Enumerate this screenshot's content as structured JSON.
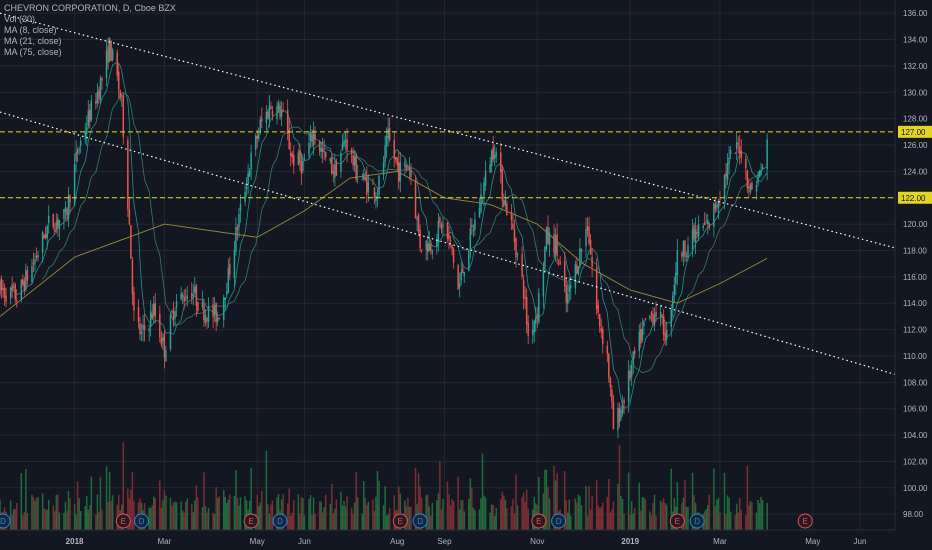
{
  "legend": {
    "symbol": "CHEVRON CORPORATION, D, Cboe BZX",
    "ind1": "Vol (20)",
    "ind2": "MA (8, close)",
    "ind3": "MA (21, close)",
    "ind4": "MA (75, close)"
  },
  "colors": {
    "background": "#131722",
    "grid": "#242733",
    "up": "#26a69a",
    "down": "#ef5350",
    "vol_up": "#1f6b3c",
    "vol_down": "#7a2e33",
    "level_line": "#e3d51c",
    "trend_line": "#ffffff",
    "ma8": "#26a69a",
    "ma21": "#3d8a7a",
    "ma75": "#9a8a3a",
    "marker_E": "#e0505a",
    "marker_D": "#2a86d6"
  },
  "chart_data": {
    "type": "candlestick",
    "title": "CHEVRON CORPORATION, D, Cboe BZX",
    "price_axis": {
      "ticks": [
        98,
        100,
        102,
        104,
        106,
        108,
        110,
        112,
        114,
        116,
        118,
        120,
        122,
        124,
        126,
        128,
        130,
        132,
        134,
        136
      ],
      "tick_labels": [
        "98.00",
        "100.00",
        "102.00",
        "104.00",
        "106.00",
        "108.00",
        "110.00",
        "112.00",
        "114.00",
        "116.00",
        "118.00",
        "120.00",
        "122.00",
        "124.00",
        "126.00",
        "128.00",
        "130.00",
        "132.00",
        "134.00",
        "136.00"
      ],
      "range": [
        96.8,
        137.0
      ]
    },
    "time_axis": {
      "range": [
        "2017-11-13",
        "2019-06-24"
      ],
      "labels": [
        {
          "date": "2018-01-01",
          "text": "2018"
        },
        {
          "date": "2018-03-01",
          "text": "Mar"
        },
        {
          "date": "2018-05-01",
          "text": "May"
        },
        {
          "date": "2018-06-01",
          "text": "Jun"
        },
        {
          "date": "2018-08-01",
          "text": "Aug"
        },
        {
          "date": "2018-09-01",
          "text": "Sep"
        },
        {
          "date": "2018-11-01",
          "text": "Nov"
        },
        {
          "date": "2019-01-01",
          "text": "2019"
        },
        {
          "date": "2019-03-01",
          "text": "Mar"
        },
        {
          "date": "2019-05-01",
          "text": "May"
        },
        {
          "date": "2019-06-01",
          "text": "Jun"
        }
      ]
    },
    "price_path_close": [
      [
        "2017-11-13",
        115.0
      ],
      [
        "2017-11-24",
        114.5
      ],
      [
        "2017-12-05",
        117.0
      ],
      [
        "2017-12-15",
        120.0
      ],
      [
        "2017-12-26",
        120.5
      ],
      [
        "2018-01-03",
        125.5
      ],
      [
        "2018-01-10",
        128.0
      ],
      [
        "2018-01-19",
        131.0
      ],
      [
        "2018-01-24",
        133.5
      ],
      [
        "2018-01-29",
        131.0
      ],
      [
        "2018-02-01",
        129.0
      ],
      [
        "2018-02-06",
        120.0
      ],
      [
        "2018-02-09",
        113.0
      ],
      [
        "2018-02-14",
        111.5
      ],
      [
        "2018-02-22",
        113.5
      ],
      [
        "2018-03-01",
        110.5
      ],
      [
        "2018-03-08",
        114.0
      ],
      [
        "2018-03-19",
        115.0
      ],
      [
        "2018-03-26",
        113.5
      ],
      [
        "2018-04-05",
        113.0
      ],
      [
        "2018-04-12",
        116.0
      ],
      [
        "2018-04-19",
        120.5
      ],
      [
        "2018-04-26",
        124.5
      ],
      [
        "2018-05-03",
        127.5
      ],
      [
        "2018-05-10",
        129.0
      ],
      [
        "2018-05-17",
        128.5
      ],
      [
        "2018-05-24",
        125.0
      ],
      [
        "2018-05-31",
        124.5
      ],
      [
        "2018-06-07",
        127.0
      ],
      [
        "2018-06-14",
        125.0
      ],
      [
        "2018-06-21",
        124.0
      ],
      [
        "2018-06-28",
        126.5
      ],
      [
        "2018-07-05",
        124.0
      ],
      [
        "2018-07-12",
        123.0
      ],
      [
        "2018-07-19",
        122.5
      ],
      [
        "2018-07-26",
        126.5
      ],
      [
        "2018-08-02",
        124.0
      ],
      [
        "2018-08-09",
        124.5
      ],
      [
        "2018-08-16",
        118.5
      ],
      [
        "2018-08-23",
        118.5
      ],
      [
        "2018-08-30",
        120.0
      ],
      [
        "2018-09-06",
        118.0
      ],
      [
        "2018-09-10",
        115.0
      ],
      [
        "2018-09-17",
        118.5
      ],
      [
        "2018-09-24",
        121.5
      ],
      [
        "2018-10-01",
        125.0
      ],
      [
        "2018-10-04",
        126.0
      ],
      [
        "2018-10-09",
        122.5
      ],
      [
        "2018-10-16",
        119.5
      ],
      [
        "2018-10-23",
        115.0
      ],
      [
        "2018-10-26",
        111.5
      ],
      [
        "2018-11-01",
        113.5
      ],
      [
        "2018-11-07",
        119.0
      ],
      [
        "2018-11-13",
        118.5
      ],
      [
        "2018-11-20",
        114.0
      ],
      [
        "2018-11-27",
        117.0
      ],
      [
        "2018-12-04",
        120.0
      ],
      [
        "2018-12-10",
        113.5
      ],
      [
        "2018-12-17",
        110.0
      ],
      [
        "2018-12-21",
        104.5
      ],
      [
        "2018-12-26",
        106.0
      ],
      [
        "2019-01-04",
        110.0
      ],
      [
        "2019-01-11",
        112.5
      ],
      [
        "2019-01-18",
        113.5
      ],
      [
        "2019-01-25",
        111.5
      ],
      [
        "2019-02-01",
        117.5
      ],
      [
        "2019-02-08",
        118.5
      ],
      [
        "2019-02-15",
        119.5
      ],
      [
        "2019-02-22",
        120.0
      ],
      [
        "2019-03-01",
        122.5
      ],
      [
        "2019-03-08",
        125.0
      ],
      [
        "2019-03-14",
        126.0
      ],
      [
        "2019-03-21",
        122.5
      ],
      [
        "2019-03-28",
        124.0
      ],
      [
        "2019-04-01",
        126.0
      ]
    ],
    "horizontal_levels": [
      {
        "price": 127.0,
        "label": "127.00"
      },
      {
        "price": 122.0,
        "label": "122.00"
      }
    ],
    "trend_lines": [
      {
        "from": [
          "2017-11-13",
          136.0
        ],
        "to": [
          "2019-06-24",
          118.2
        ]
      },
      {
        "from": [
          "2017-11-13",
          128.5
        ],
        "to": [
          "2019-06-24",
          108.6
        ]
      }
    ],
    "moving_average_75_path": [
      [
        "2017-11-13",
        113.0
      ],
      [
        "2018-01-01",
        117.5
      ],
      [
        "2018-03-01",
        120.0
      ],
      [
        "2018-05-01",
        119.0
      ],
      [
        "2018-06-01",
        121.0
      ],
      [
        "2018-07-01",
        123.5
      ],
      [
        "2018-08-01",
        124.0
      ],
      [
        "2018-09-01",
        122.0
      ],
      [
        "2018-10-01",
        121.5
      ],
      [
        "2018-11-01",
        120.0
      ],
      [
        "2018-12-01",
        117.0
      ],
      [
        "2019-01-01",
        115.0
      ],
      [
        "2019-02-01",
        114.0
      ],
      [
        "2019-03-01",
        115.5
      ],
      [
        "2019-04-01",
        117.4
      ]
    ],
    "events": [
      {
        "date": "2017-11-15",
        "type": "D"
      },
      {
        "date": "2018-02-02",
        "type": "E"
      },
      {
        "date": "2018-02-14",
        "type": "D"
      },
      {
        "date": "2018-04-27",
        "type": "E"
      },
      {
        "date": "2018-05-16",
        "type": "D"
      },
      {
        "date": "2018-08-03",
        "type": "E"
      },
      {
        "date": "2018-08-16",
        "type": "D"
      },
      {
        "date": "2018-11-02",
        "type": "E"
      },
      {
        "date": "2018-11-15",
        "type": "D"
      },
      {
        "date": "2019-02-01",
        "type": "E"
      },
      {
        "date": "2019-02-14",
        "type": "D"
      },
      {
        "date": "2019-04-26",
        "type": "E"
      }
    ]
  }
}
